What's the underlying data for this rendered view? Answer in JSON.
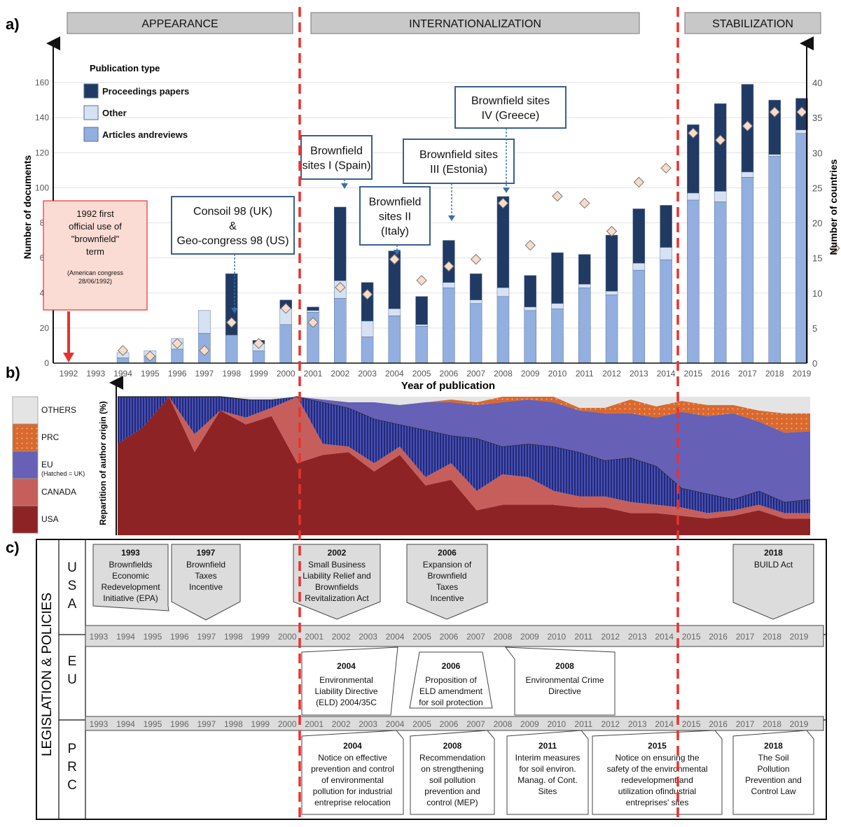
{
  "panel_labels": {
    "a": "a)",
    "b": "b)",
    "c": "c)"
  },
  "phases": [
    {
      "label": "APPEARANCE",
      "from": 1992,
      "to": 2000
    },
    {
      "label": "INTERNATIONALIZATION",
      "from": 2001,
      "to": 2014
    },
    {
      "label": "STABILIZATION",
      "from": 2015,
      "to": 2019
    }
  ],
  "colors": {
    "proceedings": "#213a63",
    "other": "#d6e2f3",
    "articles": "#93afe0",
    "diamond_fill": "#f8dcc8",
    "phase_box": "#c8c8c8",
    "divider": "#e8322f",
    "usa": "#8e2325",
    "canada": "#c65f5b",
    "eu": "#6660b6",
    "uk_hatch": "#27318a",
    "prc": "#d9692e",
    "others": "#e4e4e4",
    "note_fill": "#fbdcd4",
    "note_border": "#e8322f",
    "leg_fill": "#dcdcdc"
  },
  "chart_data": [
    {
      "type": "bar",
      "xlabel": "Year of publication",
      "ylabel": "Number of documents",
      "y2label": "Number of countries",
      "ylim": [
        0,
        160
      ],
      "y2lim": [
        0,
        40
      ],
      "yticks": [
        0,
        20,
        40,
        60,
        80,
        100,
        120,
        140,
        160
      ],
      "y2ticks": [
        0,
        5,
        10,
        15,
        20,
        25,
        30,
        35,
        40
      ],
      "legend_title": "Publication type",
      "categories": [
        "1992",
        "1993",
        "1994",
        "1995",
        "1996",
        "1997",
        "1998",
        "1999",
        "2000",
        "2001",
        "2002",
        "2003",
        "2004",
        "2005",
        "2006",
        "2007",
        "2008",
        "2009",
        "2010",
        "2011",
        "2012",
        "2013",
        "2014",
        "2015",
        "2016",
        "2017",
        "2018",
        "2019"
      ],
      "series": [
        {
          "name": "Articles andreviews",
          "values": [
            0,
            0,
            3,
            4,
            8,
            17,
            16,
            7,
            22,
            29,
            37,
            15,
            27,
            21,
            43,
            34,
            38,
            30,
            31,
            43,
            39,
            53,
            59,
            93,
            92,
            106,
            118,
            131
          ]
        },
        {
          "name": "Other",
          "values": [
            0,
            0,
            3,
            3,
            6,
            13,
            0,
            4,
            9,
            1,
            10,
            9,
            4,
            1,
            3,
            2,
            5,
            2,
            3,
            2,
            2,
            4,
            7,
            4,
            6,
            3,
            1,
            2
          ]
        },
        {
          "name": "Proceedings  papers",
          "values": [
            0,
            0,
            0,
            0,
            0,
            0,
            35,
            2,
            5,
            2,
            42,
            22,
            33,
            16,
            24,
            15,
            52,
            18,
            29,
            17,
            32,
            31,
            24,
            39,
            50,
            50,
            31,
            18
          ]
        },
        {
          "name": "Number of countries",
          "values": [
            null,
            null,
            1.8,
            1,
            2.8,
            1.8,
            5.8,
            2.8,
            7.8,
            5.8,
            10.8,
            9.8,
            14.8,
            11.8,
            13.8,
            14.8,
            22.8,
            16.8,
            23.8,
            22.8,
            18.8,
            25.8,
            27.8,
            32.8,
            31.8,
            33.8,
            35.8,
            35.8
          ]
        }
      ],
      "annotations": [
        {
          "lines": [
            "1992 first",
            "official use of",
            "\"brownfield\"",
            "term"
          ],
          "small": [
            "(American congress",
            "28/06/1992)"
          ],
          "year": "1992"
        },
        {
          "lines": [
            "Consoil 98 (UK)",
            "&",
            "Geo-congress 98 (US)"
          ],
          "year": "1998"
        },
        {
          "lines": [
            "Brownfield",
            "sites I (Spain)"
          ],
          "year": "2002"
        },
        {
          "lines": [
            "Brownfield",
            "sites II",
            "(Italy)"
          ],
          "year": "2004"
        },
        {
          "lines": [
            "Brownfield sites",
            "III (Estonia)"
          ],
          "year": "2006"
        },
        {
          "lines": [
            "Brownfield sites",
            "IV (Greece)"
          ],
          "year": "2008"
        }
      ]
    },
    {
      "type": "area",
      "ylabel": "Repartition of author origin (%)",
      "ylim": [
        0,
        100
      ],
      "x": [
        1992,
        1993,
        1994,
        1995,
        1996,
        1997,
        1998,
        1999,
        2000,
        2001,
        2002,
        2003,
        2004,
        2005,
        2006,
        2007,
        2008,
        2009,
        2010,
        2011,
        2012,
        2013,
        2014,
        2015,
        2016,
        2017,
        2018,
        2019
      ],
      "legend": [
        {
          "name": "OTHERS",
          "sub": ""
        },
        {
          "name": "PRC",
          "sub": ""
        },
        {
          "name": "EU",
          "sub": "(Hatched = UK)"
        },
        {
          "name": "CANADA",
          "sub": ""
        },
        {
          "name": "USA",
          "sub": ""
        }
      ],
      "series": [
        {
          "name": "USA",
          "values": [
            66,
            78,
            100,
            60,
            90,
            80,
            86,
            52,
            58,
            60,
            46,
            58,
            36,
            40,
            18,
            22,
            22,
            22,
            20,
            20,
            16,
            16,
            14,
            12,
            14,
            18,
            12,
            12
          ]
        },
        {
          "name": "CANADA",
          "values": [
            0,
            0,
            0,
            13,
            0,
            5,
            6,
            48,
            8,
            4,
            6,
            6,
            6,
            12,
            14,
            22,
            20,
            10,
            8,
            8,
            8,
            6,
            6,
            4,
            4,
            4,
            4,
            4
          ]
        },
        {
          "name": "UK",
          "values": [
            34,
            22,
            0,
            27,
            10,
            13,
            6,
            0,
            30,
            28,
            32,
            16,
            34,
            20,
            38,
            20,
            24,
            32,
            32,
            26,
            32,
            28,
            14,
            14,
            8,
            10,
            8,
            10
          ]
        },
        {
          "name": "EU",
          "values": [
            0,
            0,
            0,
            0,
            0,
            0,
            0,
            0,
            2,
            4,
            12,
            14,
            20,
            24,
            24,
            32,
            32,
            32,
            30,
            34,
            32,
            35,
            55,
            56,
            62,
            50,
            50,
            49
          ]
        },
        {
          "name": "PRC",
          "values": [
            0,
            0,
            0,
            0,
            0,
            0,
            0,
            0,
            0,
            0,
            0,
            0,
            0,
            2,
            2,
            4,
            4,
            4,
            2,
            4,
            10,
            8,
            8,
            8,
            6,
            8,
            14,
            13
          ]
        },
        {
          "name": "OTHERS",
          "values": [
            0,
            0,
            0,
            0,
            0,
            0,
            2,
            0,
            2,
            4,
            4,
            6,
            4,
            2,
            2,
            2,
            0,
            2,
            8,
            8,
            2,
            7,
            3,
            6,
            6,
            10,
            12,
            12
          ]
        }
      ]
    }
  ],
  "legislation": {
    "title": "LEGISLATION & POLICIES",
    "rows": [
      {
        "letters": [
          "U",
          "S",
          "A"
        ],
        "key": "usa"
      },
      {
        "letters": [
          "E",
          "U"
        ],
        "key": "eu"
      },
      {
        "letters": [
          "P",
          "R",
          "C"
        ],
        "key": "prc"
      }
    ],
    "years": [
      "1993",
      "1994",
      "1995",
      "1996",
      "1997",
      "1998",
      "1999",
      "2000",
      "2001",
      "2002",
      "2003",
      "2004",
      "2005",
      "2006",
      "2007",
      "2008",
      "2009",
      "2010",
      "2011",
      "2012",
      "2013",
      "2014",
      "2015",
      "2016",
      "2017",
      "2018",
      "2019"
    ],
    "usa": [
      {
        "year": "1993",
        "text": [
          "Brownfields",
          "Economic",
          "Redevelopment",
          "Initiative (EPA)"
        ]
      },
      {
        "year": "1997",
        "text": [
          "Brownfield",
          "Taxes",
          "Incentive"
        ]
      },
      {
        "year": "2002",
        "text": [
          "Small Business",
          "Liability Relief and",
          "Brownfields",
          "Revitalization Act"
        ]
      },
      {
        "year": "2006",
        "text": [
          "Expansion of",
          "Brownfield",
          "Taxes",
          "Incentive"
        ]
      },
      {
        "year": "2018",
        "text": [
          "BUILD Act"
        ]
      }
    ],
    "eu": [
      {
        "year": "2004",
        "text": [
          "Environmental",
          "Liability  Directive",
          "(ELD) 2004/35C"
        ]
      },
      {
        "year": "2006",
        "text": [
          "Proposition of",
          "ELD amendment",
          "for soil protection"
        ]
      },
      {
        "year": "2008",
        "text": [
          "Environmental Crime",
          "Directive"
        ]
      }
    ],
    "prc": [
      {
        "year": "2004",
        "text": [
          "Notice on effective",
          "prevention and control",
          "of environmental",
          "pollution for industrial",
          "entreprise relocation"
        ]
      },
      {
        "year": "2008",
        "text": [
          "Recommendation",
          "on strengthening",
          "soil pollution",
          "prevention and",
          "control (MEP)"
        ]
      },
      {
        "year": "2011",
        "text": [
          "Interim measures",
          "for soil environ.",
          "Manag. of Cont.",
          "Sites"
        ]
      },
      {
        "year": "2015",
        "text": [
          "Notice on ensuring the",
          "safety of the environmental",
          "redevelopment and",
          "utilization ofindustrial",
          "entreprises' sites"
        ]
      },
      {
        "year": "2018",
        "text": [
          "The Soil",
          "Pollution",
          "Prevention and",
          "Control Law"
        ]
      }
    ]
  }
}
